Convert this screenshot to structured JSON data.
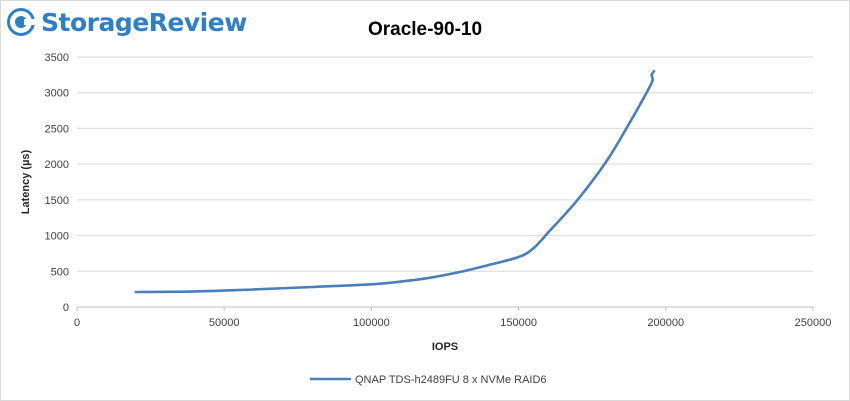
{
  "logo": {
    "text": "StorageReview",
    "icon": "storagereview-logo-icon",
    "color": "#2f7fc7"
  },
  "chart_data": {
    "type": "line",
    "title": "Oracle-90-10",
    "xlabel": "IOPS",
    "ylabel": "Latency (µs)",
    "xlim": [
      0,
      250000
    ],
    "ylim": [
      0,
      3500
    ],
    "xticks": [
      0,
      50000,
      100000,
      150000,
      200000,
      250000
    ],
    "yticks": [
      0,
      500,
      1000,
      1500,
      2000,
      2500,
      3000,
      3500
    ],
    "grid": "horizontal",
    "legend_position": "bottom",
    "series": [
      {
        "name": "QNAP TDS-h2489FU 8 x NVMe RAID6",
        "color": "#4a7ebb",
        "points": [
          [
            20000,
            210
          ],
          [
            40000,
            218
          ],
          [
            60000,
            245
          ],
          [
            80000,
            280
          ],
          [
            100000,
            318
          ],
          [
            110000,
            355
          ],
          [
            120000,
            410
          ],
          [
            130000,
            490
          ],
          [
            140000,
            590
          ],
          [
            150000,
            700
          ],
          [
            155000,
            820
          ],
          [
            160000,
            1040
          ],
          [
            170000,
            1500
          ],
          [
            180000,
            2050
          ],
          [
            188000,
            2600
          ],
          [
            194000,
            3040
          ],
          [
            195500,
            3180
          ],
          [
            195200,
            3250
          ],
          [
            196000,
            3300
          ]
        ]
      }
    ]
  }
}
